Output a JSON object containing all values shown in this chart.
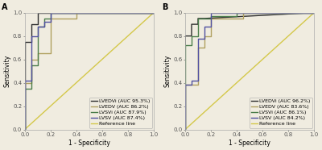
{
  "panel_A": {
    "title": "A",
    "curves": [
      {
        "name": "LVEDVi",
        "color": "#2e2e2e",
        "label": "LVEDVi (AUC 95.3%)",
        "x": [
          0.0,
          0.0,
          0.05,
          0.05,
          0.1,
          0.1,
          0.15,
          1.0
        ],
        "y": [
          0.0,
          0.75,
          0.75,
          0.9,
          0.9,
          1.0,
          1.0,
          1.0
        ]
      },
      {
        "name": "LVEDV",
        "color": "#b0a060",
        "label": "LVEDV (AUC 86.2%)",
        "x": [
          0.0,
          0.0,
          0.05,
          0.05,
          0.1,
          0.1,
          0.2,
          0.2,
          0.4,
          0.4,
          1.0
        ],
        "y": [
          0.0,
          0.4,
          0.4,
          0.6,
          0.6,
          0.65,
          0.65,
          0.95,
          0.95,
          1.0,
          1.0
        ]
      },
      {
        "name": "LVSVi",
        "color": "#4a7c4a",
        "label": "LVSVi (AUC 87.9%)",
        "x": [
          0.0,
          0.0,
          0.05,
          0.05,
          0.1,
          0.1,
          0.15,
          0.15,
          0.2,
          0.2,
          1.0
        ],
        "y": [
          0.0,
          0.35,
          0.35,
          0.55,
          0.55,
          0.88,
          0.88,
          0.95,
          0.95,
          1.0,
          1.0
        ]
      },
      {
        "name": "LVSV",
        "color": "#5050a0",
        "label": "LVSV (AUC 87.4%)",
        "x": [
          0.0,
          0.0,
          0.05,
          0.05,
          0.1,
          0.1,
          0.15,
          0.15,
          0.2,
          0.2,
          1.0
        ],
        "y": [
          0.0,
          0.42,
          0.42,
          0.8,
          0.8,
          0.88,
          0.88,
          0.92,
          0.92,
          1.0,
          1.0
        ]
      }
    ]
  },
  "panel_B": {
    "title": "B",
    "curves": [
      {
        "name": "LVEDVi",
        "color": "#2e2e2e",
        "label": "LVEDVi (AUC 96.2%)",
        "x": [
          0.0,
          0.0,
          0.05,
          0.05,
          0.1,
          0.1,
          0.15,
          1.0
        ],
        "y": [
          0.0,
          0.8,
          0.8,
          0.9,
          0.9,
          0.95,
          0.95,
          1.0
        ]
      },
      {
        "name": "LVEDV",
        "color": "#b0a060",
        "label": "LVEDV (AUC 83.6%)",
        "x": [
          0.0,
          0.0,
          0.1,
          0.1,
          0.15,
          0.15,
          0.2,
          0.2,
          0.45,
          0.45,
          1.0
        ],
        "y": [
          0.0,
          0.38,
          0.38,
          0.7,
          0.7,
          0.8,
          0.8,
          0.95,
          0.95,
          1.0,
          1.0
        ]
      },
      {
        "name": "LVSVi",
        "color": "#4a7c4a",
        "label": "LVSVi (AUC 86.1%)",
        "x": [
          0.0,
          0.0,
          0.05,
          0.05,
          0.1,
          0.1,
          0.2,
          0.2,
          0.4,
          0.4,
          1.0
        ],
        "y": [
          0.0,
          0.72,
          0.72,
          0.8,
          0.8,
          0.95,
          0.95,
          0.97,
          0.97,
          1.0,
          1.0
        ]
      },
      {
        "name": "LVSV",
        "color": "#5050a0",
        "label": "LVSV (AUC 84.2%)",
        "x": [
          0.0,
          0.0,
          0.05,
          0.05,
          0.1,
          0.1,
          0.15,
          0.15,
          0.2,
          0.2,
          1.0
        ],
        "y": [
          0.0,
          0.38,
          0.38,
          0.42,
          0.42,
          0.78,
          0.78,
          0.88,
          0.88,
          1.0,
          1.0
        ]
      }
    ]
  },
  "xlabel": "1 - Specificity",
  "ylabel": "Sensitivity",
  "ref_color": "#d4c84a",
  "bg_color": "#f0ece0",
  "tick_fontsize": 5.0,
  "label_fontsize": 5.5,
  "legend_fontsize": 4.5,
  "line_width": 1.0,
  "xticks": [
    0.0,
    0.2,
    0.4,
    0.6,
    0.8,
    1.0
  ],
  "yticks": [
    0.0,
    0.2,
    0.4,
    0.6,
    0.8,
    1.0
  ]
}
